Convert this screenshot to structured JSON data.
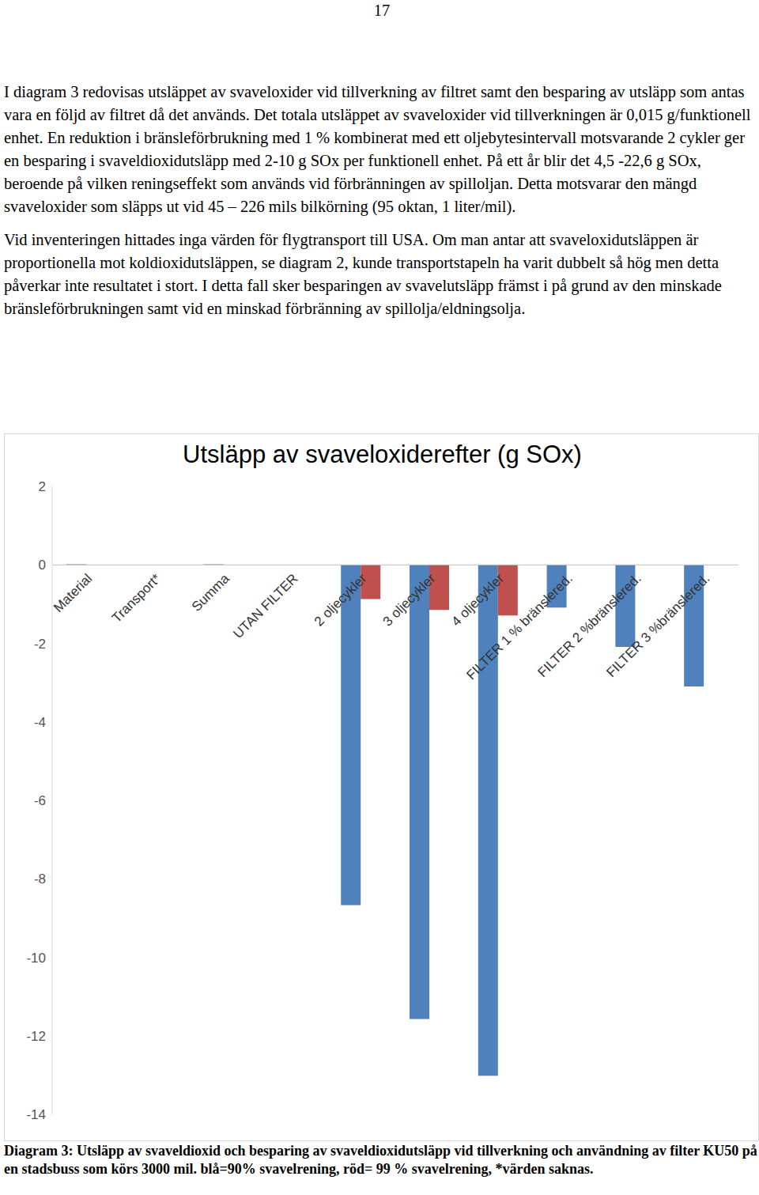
{
  "page_number": "17",
  "paragraphs": [
    "I diagram 3 redovisas utsläppet av svaveloxider vid tillverkning av filtret samt den besparing av utsläpp som antas vara en följd av filtret då det används. Det totala utsläppet av svaveloxider vid tillverkningen är 0,015 g/funktionell enhet. En reduktion i bränsleförbrukning med 1 % kombinerat med ett oljebytesintervall motsvarande 2 cykler ger en besparing i svaveldioxidutsläpp med 2-10 g SOx per funktionell enhet. På ett år blir det 4,5 -22,6 g SOx, beroende på vilken reningseffekt som används vid förbränningen av spilloljan. Detta motsvarar den mängd svaveloxider som släpps ut vid 45 – 226 mils bilkörning (95 oktan, 1 liter/mil).",
    "Vid inventeringen hittades inga värden för flygtransport till USA. Om man antar att svaveloxidutsläppen är proportionella mot koldioxidutsläppen, se diagram 2, kunde transportstapeln ha varit dubbelt så hög men detta påverkar inte resultatet i stort.  I detta fall sker besparingen av svavelutsläpp främst i på grund av den minskade bränsleförbrukningen samt vid en minskad förbränning av spillolja/eldningsolja."
  ],
  "chart_data": {
    "type": "bar",
    "title": "Utsläpp av svaveloxiderefter (g SOx)",
    "categories": [
      "Material",
      "Transport*",
      "Summa",
      "UTAN FILTER",
      "2 oljecykler",
      "3 oljecykler",
      "4 oljecykler",
      "FILTER 1 % bränslered.",
      "FILTER 2 %bränslered.",
      "FILTER 3 %bränslered."
    ],
    "series": [
      {
        "color": "#4f81bd",
        "values": [
          0.015,
          null,
          0.015,
          0,
          -8.67,
          -11.57,
          -13.02,
          -1.09,
          -2.09,
          -3.1
        ]
      },
      {
        "color": "#c0504d",
        "values": [
          null,
          null,
          null,
          null,
          -0.87,
          -1.15,
          -1.29,
          null,
          null,
          null
        ]
      }
    ],
    "ylim": [
      -14,
      2
    ],
    "yticks": [
      -14,
      -12,
      -10,
      -8,
      -6,
      -4,
      -2,
      0,
      2
    ],
    "grid": false
  },
  "caption": "Diagram 3: Utsläpp av svaveldioxid och besparing av svaveldioxidutsläpp vid tillverkning och användning av filter KU50 på en stadsbuss som körs 3000 mil. blå=90% svavelrening, röd= 99 % svavelrening, *värden saknas."
}
